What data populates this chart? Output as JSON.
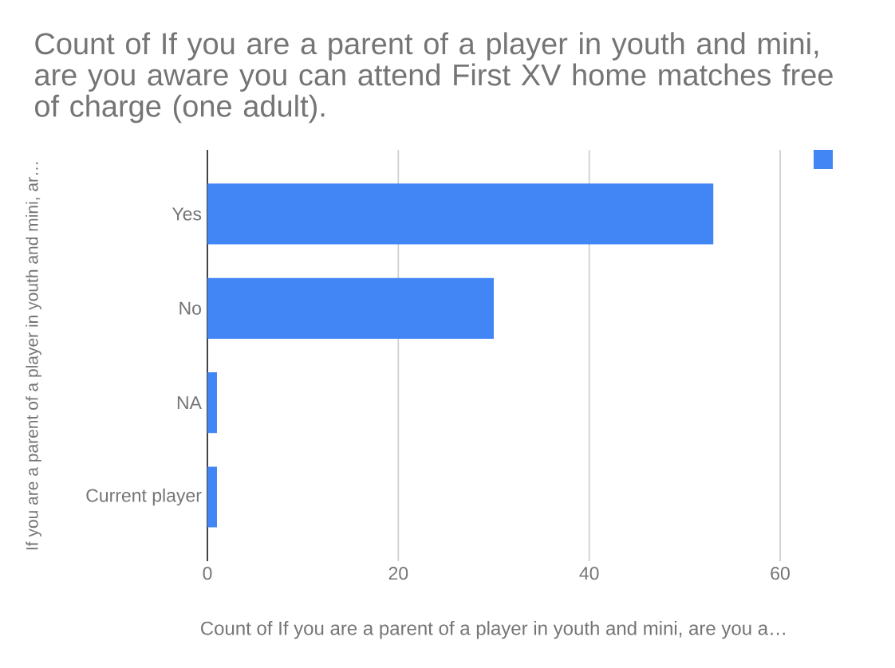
{
  "chart_data": {
    "type": "bar",
    "orientation": "horizontal",
    "title": "Count of If you are a parent of a player in youth and mini, are you aware you can attend First XV home matches free of charge (one adult).",
    "xlabel": "Count of If you are a parent of a player in youth and mini, are you a…",
    "ylabel": "If you are a parent of a player in youth and mini, ar…",
    "categories": [
      "Yes",
      "No",
      "NA",
      "Current player"
    ],
    "series": [
      {
        "color": "#4285f4",
        "values": [
          53,
          30,
          1,
          1
        ]
      }
    ],
    "xlim": [
      0,
      60
    ],
    "xticks": [
      0,
      20,
      40,
      60
    ],
    "grid": "x"
  }
}
